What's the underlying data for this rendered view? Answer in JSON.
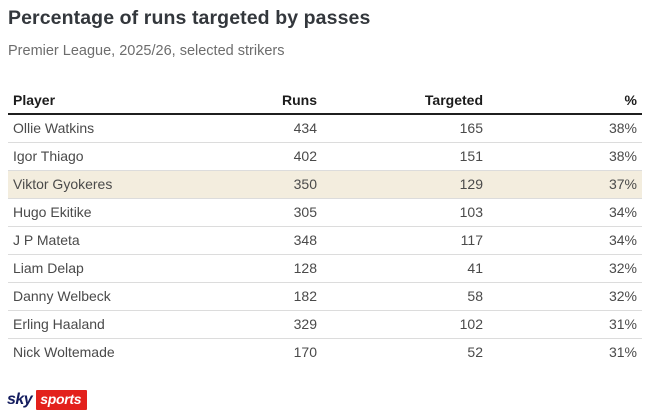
{
  "header": {
    "title": "Percentage of runs targeted by passes",
    "subtitle": "Premier League, 2025/26, selected strikers"
  },
  "chart_data": {
    "type": "table",
    "title": "Percentage of runs targeted by passes",
    "subtitle": "Premier League, 2025/26, selected strikers",
    "columns": [
      "Player",
      "Runs",
      "Targeted",
      "%"
    ],
    "rows": [
      [
        "Ollie Watkins",
        434,
        165,
        "38%"
      ],
      [
        "Igor Thiago",
        402,
        151,
        "38%"
      ],
      [
        "Viktor Gyokeres",
        350,
        129,
        "37%"
      ],
      [
        "Hugo Ekitike",
        305,
        103,
        "34%"
      ],
      [
        "J P Mateta",
        348,
        117,
        "34%"
      ],
      [
        "Liam Delap",
        128,
        41,
        "32%"
      ],
      [
        "Danny Welbeck",
        182,
        58,
        "32%"
      ],
      [
        "Erling Haaland",
        329,
        102,
        "31%"
      ],
      [
        "Nick Woltemade",
        170,
        52,
        "31%"
      ]
    ],
    "highlighted_row_index": 2,
    "highlighted_player": "Viktor Gyokeres"
  },
  "colors": {
    "highlight_row_bg": "#f3edde",
    "sky_navy": "#131c5e",
    "sky_red": "#e3211c"
  },
  "footer": {
    "logo_sky": "sky",
    "logo_sports": "sports"
  }
}
